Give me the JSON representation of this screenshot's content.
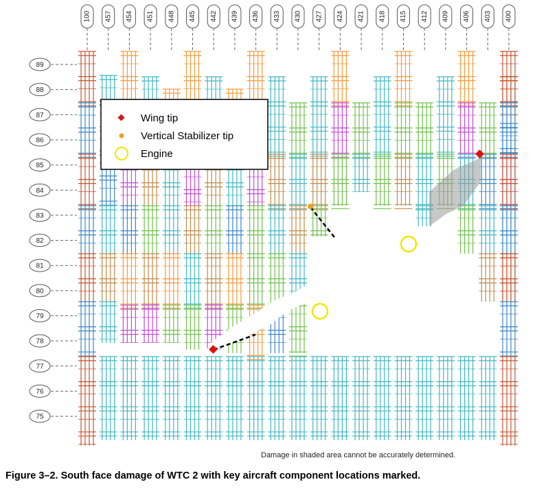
{
  "columns": [
    "100",
    "457",
    "454",
    "451",
    "448",
    "445",
    "442",
    "439",
    "436",
    "433",
    "430",
    "427",
    "424",
    "421",
    "418",
    "415",
    "412",
    "409",
    "406",
    "403",
    "400"
  ],
  "floors": [
    "89",
    "88",
    "87",
    "86",
    "85",
    "84",
    "83",
    "82",
    "81",
    "80",
    "79",
    "78",
    "77",
    "76",
    "75"
  ],
  "legend": [
    {
      "label": "Wing tip",
      "marker": "red-diamond",
      "color": "#e01010"
    },
    {
      "label": "Vertical Stabilizer tip",
      "marker": "orange-dot",
      "color": "#f0a020"
    },
    {
      "label": "Engine",
      "marker": "yellow-ring",
      "color": "#f2e600"
    }
  ],
  "note": "Damage in shaded area cannot be accurately determined.",
  "caption": "Figure 3–2.  South face damage of WTC 2 with key aircraft component locations marked.",
  "panel_colors": [
    "#f59a3a",
    "#3fb7c0",
    "#6ec04a",
    "#c08a4a",
    "#c24ad6",
    "#3a86c8"
  ],
  "edge_color": "#c8522e"
}
